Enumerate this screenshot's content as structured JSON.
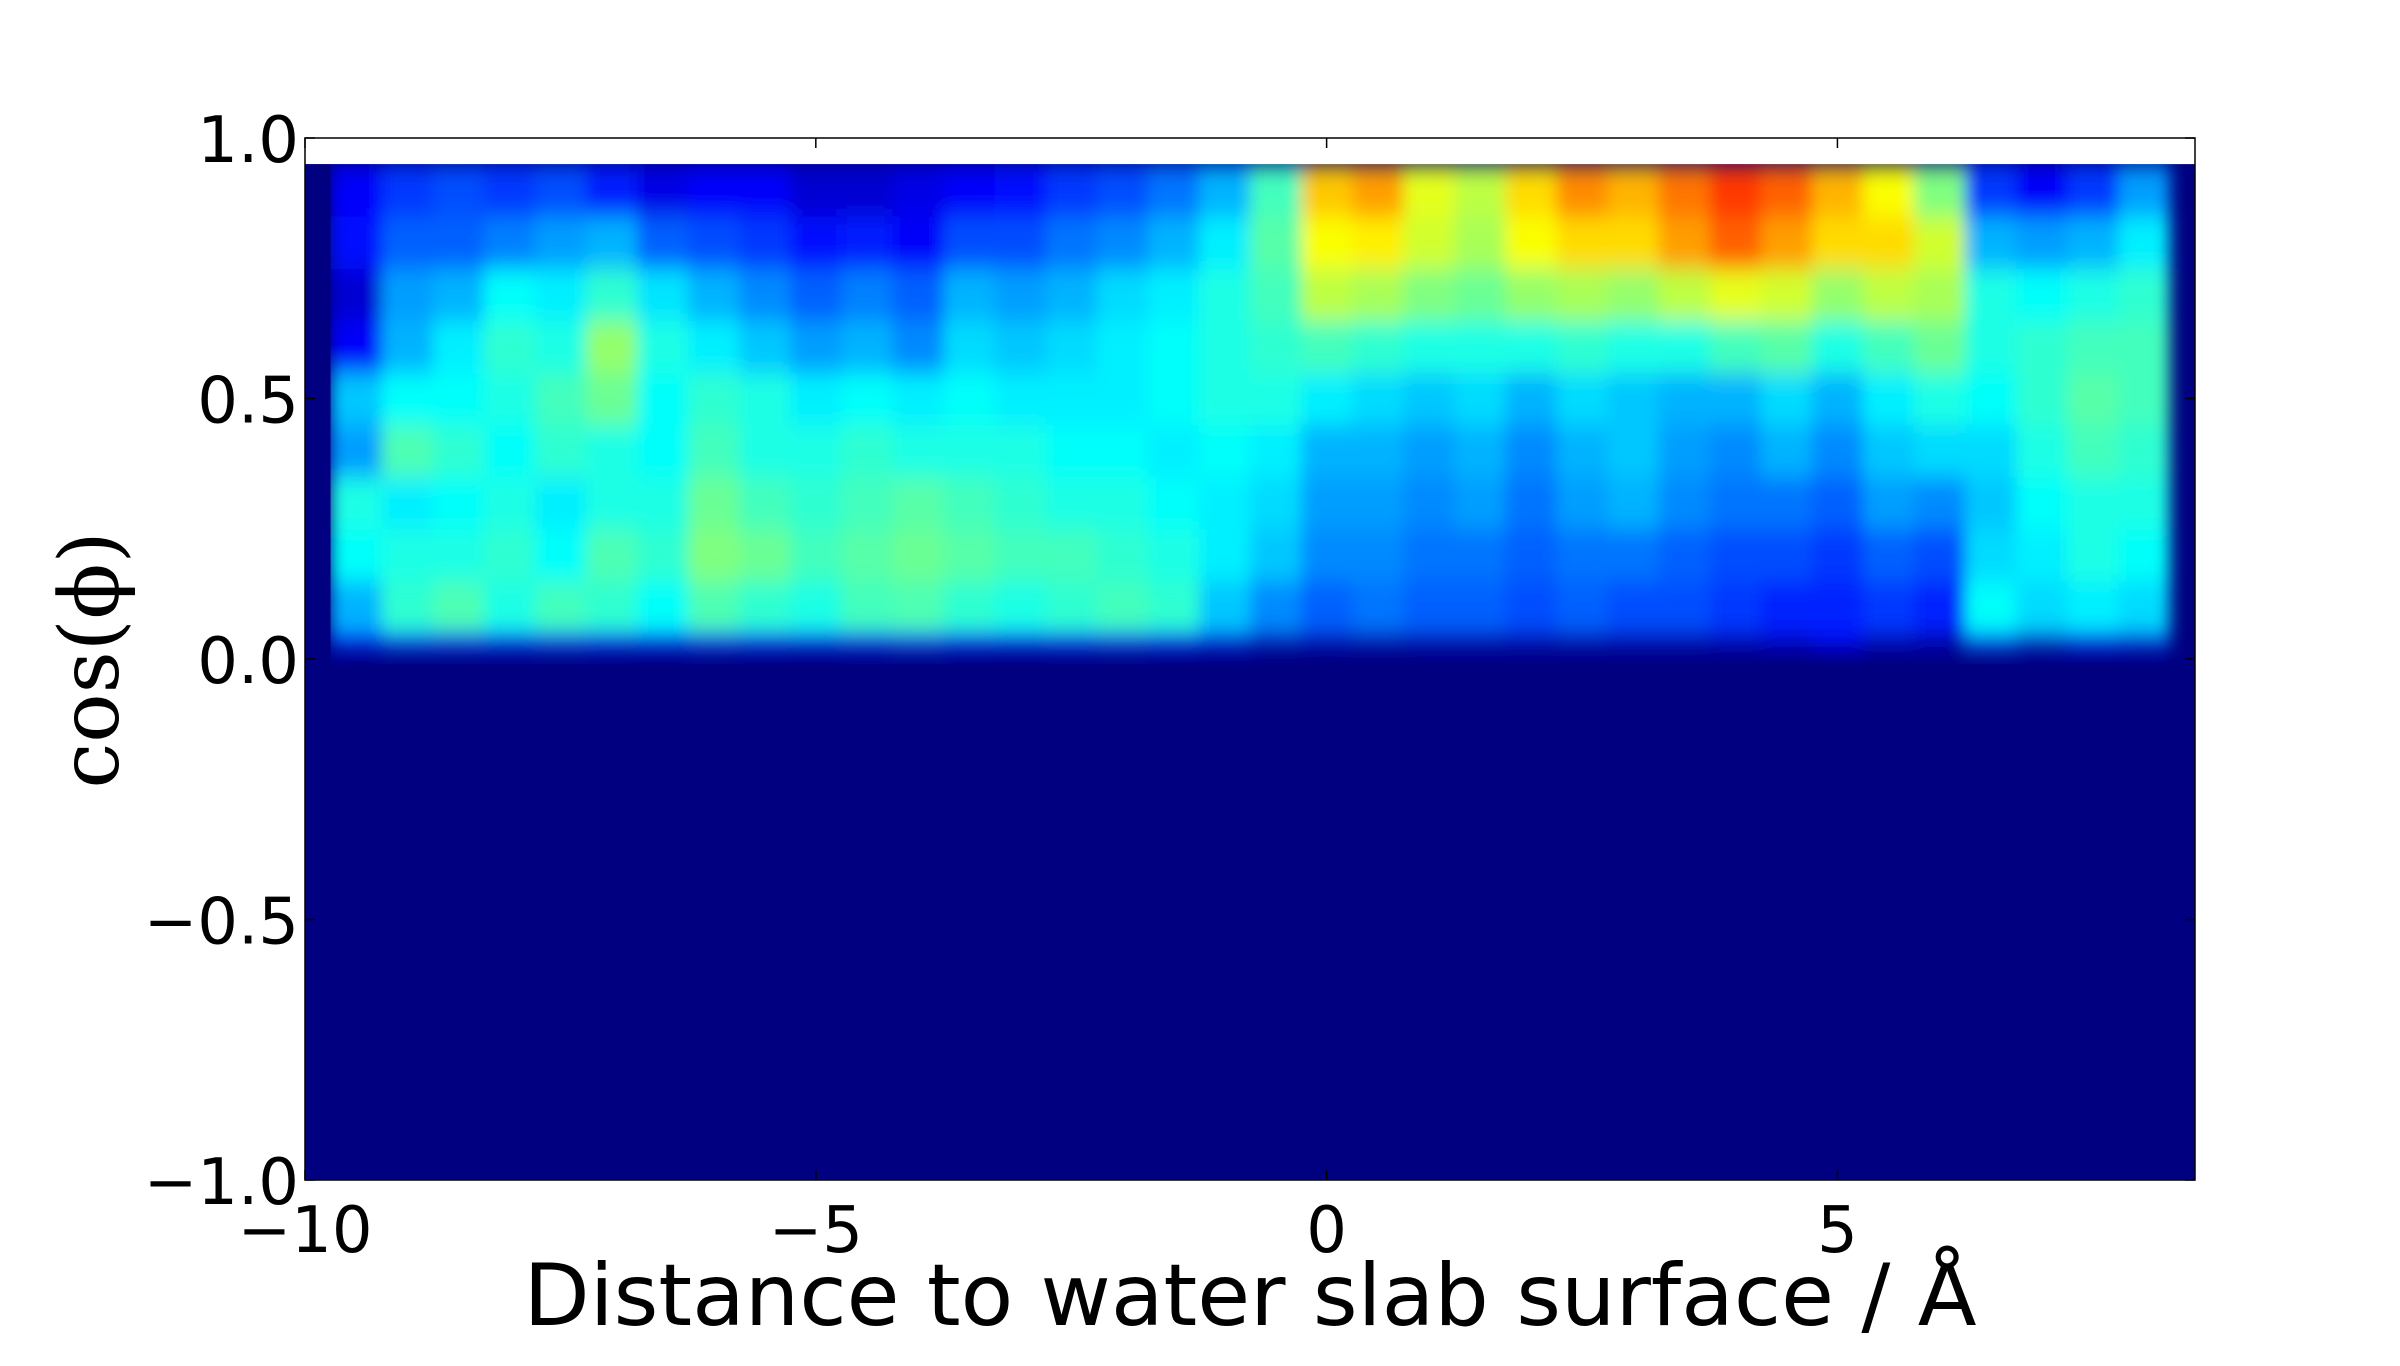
{
  "chart_data": {
    "type": "heatmap",
    "title": "",
    "xlabel": "Distance to water slab surface / Å",
    "ylabel": "cos(ϕ)",
    "xlim": [
      -10,
      8.5
    ],
    "ylim": [
      -1.0,
      1.0
    ],
    "data_ylim": [
      -1.0,
      0.95
    ],
    "xticks": [
      -10,
      -5,
      0,
      5
    ],
    "xtick_labels": [
      "−10",
      "−5",
      "0",
      "5"
    ],
    "yticks": [
      -1.0,
      -0.5,
      0.0,
      0.5,
      1.0
    ],
    "ytick_labels": [
      "−1.0",
      "−0.5",
      "0.0",
      "0.5",
      "1.0"
    ],
    "colormap": "jet",
    "grid": false,
    "colorbar": false,
    "x_bins": [
      -9.5,
      -9,
      -8.5,
      -8,
      -7.5,
      -7,
      -6.5,
      -6,
      -5.5,
      -5,
      -4.5,
      -4,
      -3.5,
      -3,
      -2.5,
      -2,
      -1.5,
      -1,
      -0.5,
      0,
      0.5,
      1,
      1.5,
      2,
      2.5,
      3,
      3.5,
      4,
      4.5,
      5,
      5.5,
      6,
      6.5,
      7,
      7.5,
      8
    ],
    "y_bins": [
      0.0,
      0.1,
      0.2,
      0.3,
      0.4,
      0.5,
      0.6,
      0.7,
      0.8,
      0.9
    ],
    "intensity": [
      [
        0.12,
        0.3,
        0.38,
        0.4,
        0.28,
        0.32,
        0.12,
        0.08,
        0.14,
        0.12
      ],
      [
        0.2,
        0.42,
        0.4,
        0.36,
        0.45,
        0.38,
        0.3,
        0.28,
        0.22,
        0.18
      ],
      [
        0.18,
        0.45,
        0.4,
        0.38,
        0.42,
        0.38,
        0.36,
        0.3,
        0.22,
        0.2
      ],
      [
        0.16,
        0.4,
        0.42,
        0.4,
        0.38,
        0.4,
        0.42,
        0.38,
        0.25,
        0.18
      ],
      [
        0.18,
        0.44,
        0.38,
        0.36,
        0.42,
        0.44,
        0.4,
        0.36,
        0.28,
        0.2
      ],
      [
        0.15,
        0.42,
        0.45,
        0.4,
        0.4,
        0.48,
        0.52,
        0.42,
        0.3,
        0.15
      ],
      [
        0.12,
        0.38,
        0.42,
        0.4,
        0.38,
        0.38,
        0.4,
        0.35,
        0.22,
        0.1
      ],
      [
        0.18,
        0.45,
        0.5,
        0.48,
        0.44,
        0.42,
        0.36,
        0.3,
        0.2,
        0.12
      ],
      [
        0.14,
        0.42,
        0.48,
        0.44,
        0.4,
        0.4,
        0.32,
        0.26,
        0.18,
        0.12
      ],
      [
        0.12,
        0.4,
        0.44,
        0.42,
        0.4,
        0.36,
        0.28,
        0.22,
        0.14,
        0.08
      ],
      [
        0.16,
        0.44,
        0.46,
        0.44,
        0.42,
        0.38,
        0.3,
        0.25,
        0.15,
        0.08
      ],
      [
        0.2,
        0.45,
        0.48,
        0.46,
        0.4,
        0.36,
        0.26,
        0.22,
        0.12,
        0.1
      ],
      [
        0.14,
        0.42,
        0.46,
        0.44,
        0.4,
        0.38,
        0.34,
        0.3,
        0.2,
        0.12
      ],
      [
        0.12,
        0.4,
        0.44,
        0.42,
        0.4,
        0.36,
        0.32,
        0.28,
        0.2,
        0.14
      ],
      [
        0.16,
        0.42,
        0.44,
        0.4,
        0.38,
        0.36,
        0.34,
        0.3,
        0.24,
        0.18
      ],
      [
        0.18,
        0.44,
        0.42,
        0.4,
        0.38,
        0.36,
        0.36,
        0.34,
        0.26,
        0.2
      ],
      [
        0.14,
        0.42,
        0.4,
        0.38,
        0.36,
        0.38,
        0.38,
        0.36,
        0.3,
        0.24
      ],
      [
        0.1,
        0.32,
        0.36,
        0.36,
        0.38,
        0.4,
        0.4,
        0.4,
        0.36,
        0.3
      ],
      [
        0.06,
        0.26,
        0.32,
        0.34,
        0.36,
        0.4,
        0.42,
        0.44,
        0.46,
        0.44
      ],
      [
        0.05,
        0.22,
        0.26,
        0.28,
        0.3,
        0.36,
        0.44,
        0.56,
        0.62,
        0.68
      ],
      [
        0.05,
        0.24,
        0.26,
        0.28,
        0.3,
        0.34,
        0.42,
        0.54,
        0.64,
        0.72
      ],
      [
        0.05,
        0.22,
        0.24,
        0.26,
        0.28,
        0.32,
        0.4,
        0.5,
        0.58,
        0.6
      ],
      [
        0.05,
        0.22,
        0.24,
        0.28,
        0.3,
        0.34,
        0.4,
        0.48,
        0.54,
        0.56
      ],
      [
        0.05,
        0.2,
        0.22,
        0.24,
        0.26,
        0.3,
        0.4,
        0.52,
        0.62,
        0.66
      ],
      [
        0.05,
        0.22,
        0.24,
        0.28,
        0.3,
        0.34,
        0.42,
        0.54,
        0.66,
        0.74
      ],
      [
        0.05,
        0.2,
        0.24,
        0.3,
        0.32,
        0.32,
        0.4,
        0.52,
        0.66,
        0.7
      ],
      [
        0.05,
        0.2,
        0.22,
        0.26,
        0.28,
        0.3,
        0.4,
        0.56,
        0.72,
        0.76
      ],
      [
        0.06,
        0.18,
        0.2,
        0.24,
        0.26,
        0.3,
        0.44,
        0.6,
        0.78,
        0.82
      ],
      [
        0.08,
        0.16,
        0.2,
        0.24,
        0.3,
        0.34,
        0.46,
        0.58,
        0.72,
        0.78
      ],
      [
        0.12,
        0.16,
        0.18,
        0.22,
        0.26,
        0.3,
        0.4,
        0.52,
        0.66,
        0.7
      ],
      [
        0.06,
        0.18,
        0.22,
        0.28,
        0.32,
        0.36,
        0.44,
        0.56,
        0.66,
        0.62
      ],
      [
        0.05,
        0.16,
        0.2,
        0.26,
        0.34,
        0.4,
        0.48,
        0.54,
        0.58,
        0.5
      ],
      [
        0.22,
        0.38,
        0.34,
        0.32,
        0.34,
        0.38,
        0.4,
        0.4,
        0.3,
        0.18
      ],
      [
        0.08,
        0.34,
        0.36,
        0.38,
        0.4,
        0.42,
        0.42,
        0.38,
        0.28,
        0.12
      ],
      [
        0.12,
        0.36,
        0.4,
        0.4,
        0.44,
        0.46,
        0.44,
        0.4,
        0.3,
        0.18
      ],
      [
        0.1,
        0.34,
        0.38,
        0.4,
        0.42,
        0.44,
        0.44,
        0.42,
        0.36,
        0.28
      ]
    ]
  }
}
